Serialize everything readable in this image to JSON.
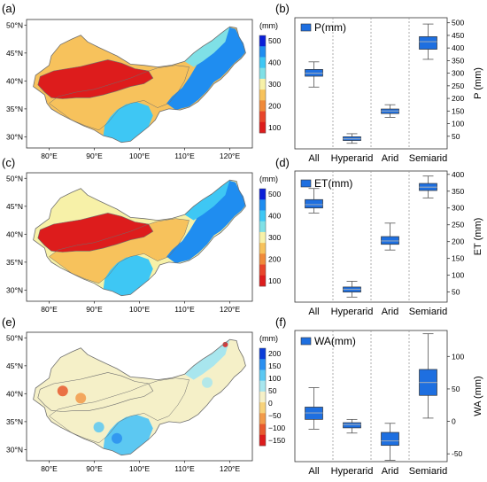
{
  "colors": {
    "box_fill": "#1e6fe0",
    "median": "#8fa4c0",
    "whisker": "#555555",
    "divider": "#999999",
    "map_outline": "#6e6e6e"
  },
  "maps": [
    {
      "panel": "(a)",
      "unit": "(mm)",
      "lat_ticks": [
        "50°N",
        "45°N",
        "40°N",
        "35°N",
        "30°N"
      ],
      "lon_ticks": [
        "80°E",
        "90°E",
        "100°E",
        "110°E",
        "120°E"
      ],
      "cb_ticks": [
        "500",
        "400",
        "300",
        "200",
        "100"
      ],
      "cb_colors": [
        "#0a1fd8",
        "#1f8df0",
        "#3ec7f4",
        "#7fe0e6",
        "#f7f1a8",
        "#f7c25c",
        "#f08a3a",
        "#e8452a",
        "#dd1c1c"
      ]
    },
    {
      "panel": "(c)",
      "unit": "(mm)",
      "lat_ticks": [
        "50°N",
        "45°N",
        "40°N",
        "35°N",
        "30°N"
      ],
      "lon_ticks": [
        "80°E",
        "90°E",
        "100°E",
        "110°E",
        "120°E"
      ],
      "cb_ticks": [
        "500",
        "400",
        "300",
        "200",
        "100"
      ],
      "cb_colors": [
        "#0a1fd8",
        "#1f8df0",
        "#3ec7f4",
        "#7fe0e6",
        "#f7f1a8",
        "#f7c25c",
        "#f08a3a",
        "#e8452a",
        "#dd1c1c"
      ]
    },
    {
      "panel": "(e)",
      "unit": "(mm)",
      "lat_ticks": [
        "50°N",
        "45°N",
        "40°N",
        "35°N",
        "30°N"
      ],
      "lon_ticks": [
        "80°E",
        "90°E",
        "100°E",
        "110°E",
        "120°E"
      ],
      "cb_ticks": [
        "200",
        "150",
        "100",
        "50",
        "0",
        "−50",
        "−100",
        "−150"
      ],
      "cb_colors": [
        "#0a3cd8",
        "#2a8ff0",
        "#5cc8f2",
        "#a8e6ee",
        "#f5f0c8",
        "#f7d27a",
        "#f29a4a",
        "#e85a2e",
        "#dd1c1c"
      ]
    }
  ],
  "chart_data": [
    {
      "type": "box",
      "panel": "(b)",
      "legend": "P(mm)",
      "categories": [
        "All",
        "Hyperarid",
        "Arid",
        "Semiarid"
      ],
      "ylabel": "P (mm)",
      "ylim": [
        0,
        520
      ],
      "yticks": [
        50,
        100,
        150,
        200,
        250,
        300,
        350,
        400,
        450,
        500
      ],
      "boxes": [
        {
          "min": 245,
          "q1": 288,
          "median": 300,
          "q3": 315,
          "max": 345
        },
        {
          "min": 22,
          "q1": 33,
          "median": 40,
          "q3": 48,
          "max": 60
        },
        {
          "min": 125,
          "q1": 140,
          "median": 150,
          "q3": 158,
          "max": 175
        },
        {
          "min": 355,
          "q1": 395,
          "median": 425,
          "q3": 445,
          "max": 495
        }
      ]
    },
    {
      "type": "box",
      "panel": "(d)",
      "legend": "ET(mm)",
      "categories": [
        "All",
        "Hyperarid",
        "Arid",
        "Semiarid"
      ],
      "ylabel": "ET (mm)",
      "ylim": [
        20,
        410
      ],
      "yticks": [
        50,
        100,
        150,
        200,
        250,
        300,
        350,
        400
      ],
      "boxes": [
        {
          "min": 285,
          "q1": 300,
          "median": 310,
          "q3": 325,
          "max": 358
        },
        {
          "min": 35,
          "q1": 50,
          "median": 58,
          "q3": 65,
          "max": 82
        },
        {
          "min": 175,
          "q1": 192,
          "median": 202,
          "q3": 215,
          "max": 255
        },
        {
          "min": 330,
          "q1": 352,
          "median": 362,
          "q3": 373,
          "max": 395
        }
      ]
    },
    {
      "type": "box",
      "panel": "(f)",
      "legend": "WA(mm)",
      "categories": [
        "All",
        "Hyperarid",
        "Arid",
        "Semiarid"
      ],
      "ylabel": "WA (mm)",
      "ylim": [
        -62,
        140
      ],
      "yticks": [
        -50,
        0,
        50,
        100
      ],
      "boxes": [
        {
          "min": -12,
          "q1": 3,
          "median": 13,
          "q3": 22,
          "max": 52
        },
        {
          "min": -18,
          "q1": -10,
          "median": -5,
          "q3": -2,
          "max": 3
        },
        {
          "min": -60,
          "q1": -37,
          "median": -30,
          "q3": -17,
          "max": -3
        },
        {
          "min": 5,
          "q1": 40,
          "median": 60,
          "q3": 80,
          "max": 135
        }
      ]
    }
  ]
}
